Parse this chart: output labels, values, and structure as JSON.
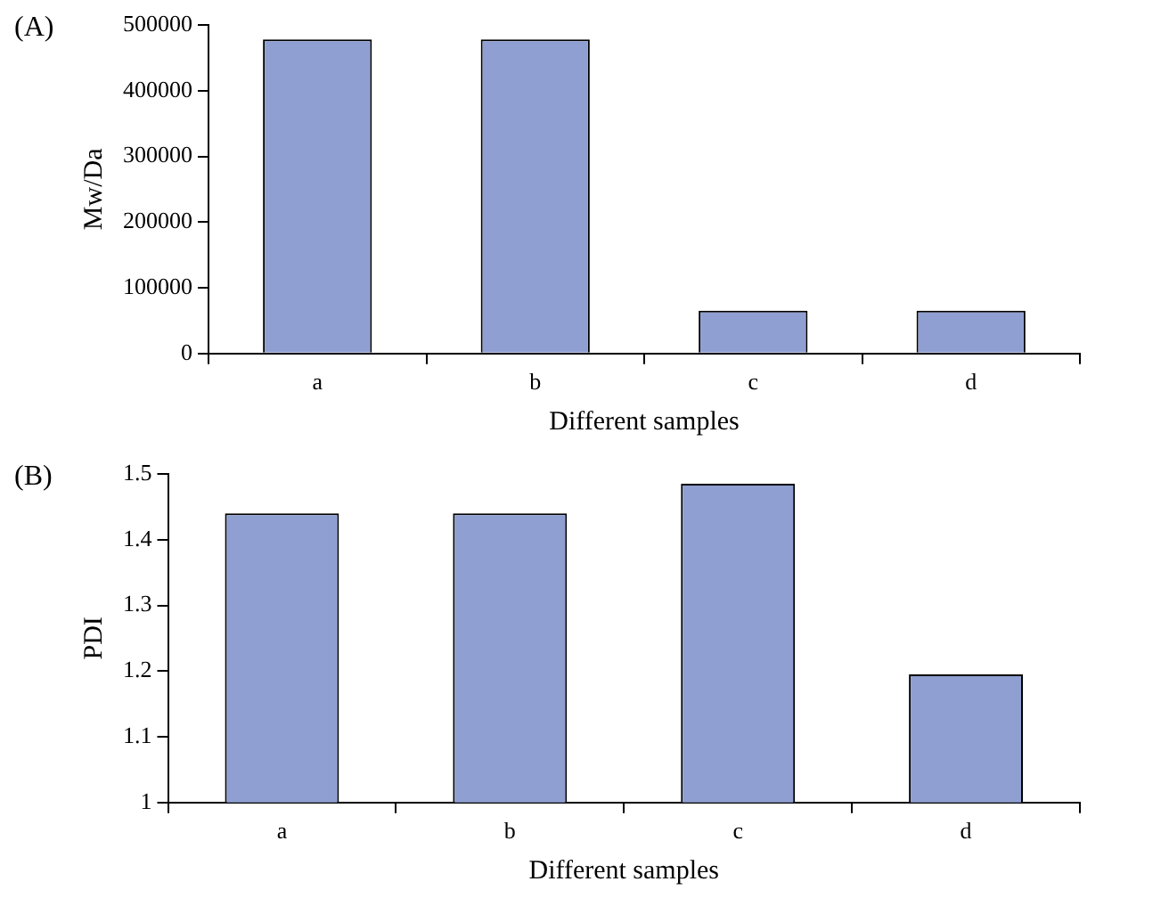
{
  "chart_data": [
    {
      "type": "bar",
      "title": "(A)",
      "categories": [
        "a",
        "b",
        "c",
        "d"
      ],
      "values": [
        478000,
        478000,
        65000,
        65000
      ],
      "color": "#8f9fd1",
      "xlabel": "Different samples",
      "ylabel": "Mw/Da",
      "ylim": [
        0,
        500000
      ],
      "yticks": [
        0,
        100000,
        200000,
        300000,
        400000,
        500000
      ],
      "grid": false,
      "legend": false
    },
    {
      "type": "bar",
      "title": "(B)",
      "categories": [
        "a",
        "b",
        "c",
        "d"
      ],
      "values": [
        1.44,
        1.44,
        1.485,
        1.195
      ],
      "color": "#8f9fd1",
      "xlabel": "Different samples",
      "ylabel": "PDI",
      "ylim": [
        1,
        1.5
      ],
      "yticks": [
        1,
        1.1,
        1.2,
        1.3,
        1.4,
        1.5
      ],
      "grid": false,
      "legend": false
    }
  ]
}
